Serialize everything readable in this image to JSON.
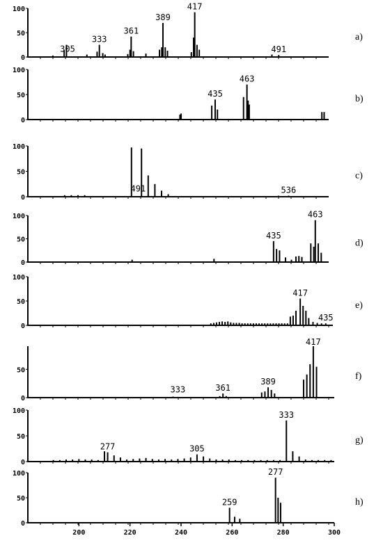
{
  "chart_data": [
    {
      "type": "bar",
      "panel_label": "a)",
      "y_ticks": [
        "100",
        "50",
        "0"
      ],
      "peak_labels": [
        {
          "x": 305,
          "text": "305"
        },
        {
          "x": 333,
          "text": "333"
        },
        {
          "x": 361,
          "text": "361"
        },
        {
          "x": 389,
          "text": "389"
        },
        {
          "x": 417,
          "text": "417"
        },
        {
          "x": 491,
          "text": "491"
        }
      ],
      "x": [
        292,
        302,
        304,
        322,
        331,
        333,
        336,
        338,
        358,
        360,
        361,
        363,
        374,
        386,
        388,
        389,
        391,
        393,
        414,
        416,
        417,
        419,
        421,
        485,
        491
      ],
      "values": [
        3,
        14,
        25,
        5,
        11,
        25,
        8,
        5,
        6,
        15,
        42,
        12,
        7,
        15,
        20,
        70,
        20,
        13,
        10,
        40,
        92,
        25,
        15,
        5,
        4
      ]
    },
    {
      "type": "bar",
      "panel_label": "b)",
      "y_ticks": [
        "100",
        "50",
        "0"
      ],
      "peak_labels": [
        {
          "x": 435,
          "text": "435"
        },
        {
          "x": 463,
          "text": "463"
        }
      ],
      "x": [
        404,
        405,
        432,
        435,
        437,
        460,
        463,
        464,
        465,
        529,
        531
      ],
      "values": [
        10,
        12,
        28,
        40,
        20,
        45,
        70,
        38,
        30,
        15,
        15
      ]
    },
    {
      "type": "bar",
      "panel_label": "c)",
      "y_ticks": [
        "100",
        "50",
        "0"
      ],
      "peak_labels": [
        {
          "x": 491,
          "text": "491"
        },
        {
          "x": 536,
          "text": "536"
        }
      ],
      "x": [
        469,
        471,
        473,
        475,
        489,
        492,
        494,
        496,
        498,
        500,
        533,
        536
      ],
      "values": [
        3,
        3,
        3,
        3,
        97,
        95,
        42,
        25,
        12,
        5,
        2,
        2
      ]
    },
    {
      "type": "bar",
      "panel_label": "d)",
      "y_ticks": [
        "100",
        "50",
        "0"
      ],
      "peak_labels": [
        {
          "x": 435,
          "text": "435"
        },
        {
          "x": 463,
          "text": "463"
        }
      ],
      "x": [
        340,
        395,
        435,
        437,
        439,
        443,
        447,
        450,
        452,
        454,
        460,
        462,
        463,
        465,
        467
      ],
      "values": [
        5,
        7,
        45,
        28,
        25,
        10,
        5,
        12,
        13,
        11,
        40,
        33,
        90,
        40,
        20
      ]
    },
    {
      "type": "bar",
      "panel_label": "e)",
      "y_ticks": [
        "100",
        "50",
        "0"
      ],
      "peak_labels": [
        {
          "x": 417,
          "text": "417"
        },
        {
          "x": 435,
          "text": "435"
        }
      ],
      "x": [
        354,
        356,
        358,
        360,
        362,
        364,
        366,
        368,
        370,
        372,
        374,
        376,
        378,
        380,
        382,
        384,
        386,
        388,
        390,
        392,
        394,
        396,
        398,
        400,
        402,
        404,
        406,
        408,
        410,
        412,
        414,
        417,
        419,
        421,
        423,
        426,
        429,
        432,
        435
      ],
      "values": [
        4,
        5,
        6,
        7,
        8,
        7,
        8,
        6,
        5,
        5,
        5,
        4,
        4,
        4,
        4,
        4,
        4,
        4,
        4,
        4,
        4,
        4,
        4,
        4,
        4,
        4,
        4,
        4,
        18,
        20,
        30,
        55,
        40,
        30,
        15,
        7,
        5,
        4,
        4
      ]
    },
    {
      "type": "bar",
      "panel_label": "f)",
      "y_ticks": [
        "50",
        "0"
      ],
      "peak_labels": [
        {
          "x": 333,
          "text": "333"
        },
        {
          "x": 361,
          "text": "361"
        },
        {
          "x": 389,
          "text": "389"
        },
        {
          "x": 417,
          "text": "417"
        }
      ],
      "x": [
        330,
        359,
        361,
        363,
        385,
        387,
        389,
        391,
        393,
        411,
        413,
        415,
        417,
        419
      ],
      "values": [
        2,
        3,
        8,
        3,
        10,
        12,
        20,
        15,
        8,
        35,
        45,
        65,
        100,
        60
      ]
    },
    {
      "type": "bar",
      "panel_label": "g)",
      "y_ticks": [
        "100",
        "50",
        "0"
      ],
      "peak_labels": [
        {
          "x": 277,
          "text": "277"
        },
        {
          "x": 305,
          "text": "305"
        },
        {
          "x": 333,
          "text": "333"
        }
      ],
      "x": [
        260,
        262,
        264,
        266,
        268,
        270,
        272,
        274,
        276,
        277,
        279,
        281,
        283,
        285,
        287,
        289,
        291,
        293,
        295,
        297,
        299,
        301,
        303,
        305,
        307,
        309,
        311,
        313,
        315,
        317,
        319,
        321,
        323,
        325,
        327,
        329,
        331,
        333,
        335,
        337,
        339,
        341,
        343,
        345,
        347
      ],
      "values": [
        3,
        3,
        4,
        4,
        5,
        4,
        4,
        3,
        20,
        18,
        12,
        8,
        4,
        5,
        6,
        7,
        5,
        4,
        5,
        4,
        5,
        6,
        8,
        14,
        10,
        6,
        4,
        4,
        4,
        3,
        3,
        3,
        3,
        3,
        3,
        3,
        3,
        80,
        20,
        10,
        4,
        3,
        3,
        3,
        3
      ]
    },
    {
      "type": "bar",
      "panel_label": "h)",
      "y_ticks": [
        "100",
        "50",
        "0"
      ],
      "peak_labels": [
        {
          "x": 259,
          "text": "259"
        },
        {
          "x": 277,
          "text": "277"
        }
      ],
      "x": [
        259,
        261,
        263,
        277,
        278,
        279
      ],
      "values": [
        30,
        12,
        8,
        90,
        50,
        40
      ]
    }
  ],
  "x_axis": {
    "ticks": [
      "200",
      "220",
      "240",
      "260",
      "280",
      "300"
    ]
  }
}
